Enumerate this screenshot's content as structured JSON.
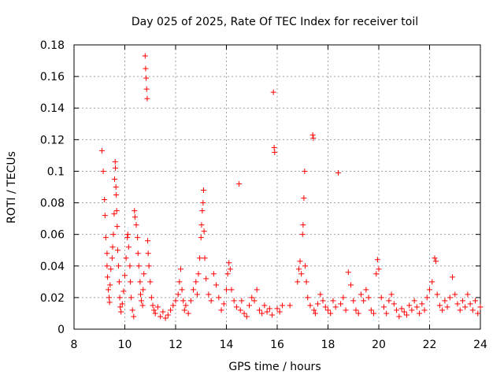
{
  "chart_data": {
    "type": "scatter",
    "title": "Day 025 of 2025, Rate Of TEC Index for receiver toil",
    "xlabel": "GPS time / hours",
    "ylabel": "ROTI / TECUs",
    "xlim": [
      8,
      24
    ],
    "ylim": [
      0,
      0.18
    ],
    "xticks": [
      "8",
      "10",
      "12",
      "14",
      "16",
      "18",
      "20",
      "22",
      "24"
    ],
    "yticks": [
      "0",
      "0.02",
      "0.04",
      "0.06",
      "0.08",
      "0.1",
      "0.12",
      "0.14",
      "0.16",
      "0.18"
    ],
    "grid": true,
    "marker": "+",
    "color": "#ff0000",
    "series": [
      {
        "name": "ROTI",
        "points": [
          [
            9.1,
            0.113
          ],
          [
            9.15,
            0.1
          ],
          [
            9.2,
            0.082
          ],
          [
            9.22,
            0.072
          ],
          [
            9.25,
            0.058
          ],
          [
            9.3,
            0.048
          ],
          [
            9.3,
            0.04
          ],
          [
            9.32,
            0.033
          ],
          [
            9.35,
            0.025
          ],
          [
            9.38,
            0.02
          ],
          [
            9.4,
            0.017
          ],
          [
            9.42,
            0.028
          ],
          [
            9.45,
            0.038
          ],
          [
            9.5,
            0.045
          ],
          [
            9.52,
            0.052
          ],
          [
            9.55,
            0.06
          ],
          [
            9.58,
            0.073
          ],
          [
            9.6,
            0.095
          ],
          [
            9.62,
            0.106
          ],
          [
            9.63,
            0.102
          ],
          [
            9.65,
            0.09
          ],
          [
            9.66,
            0.085
          ],
          [
            9.68,
            0.075
          ],
          [
            9.7,
            0.065
          ],
          [
            9.72,
            0.05
          ],
          [
            9.75,
            0.04
          ],
          [
            9.78,
            0.03
          ],
          [
            9.8,
            0.02
          ],
          [
            9.82,
            0.014
          ],
          [
            9.85,
            0.011
          ],
          [
            9.9,
            0.016
          ],
          [
            9.95,
            0.024
          ],
          [
            10.0,
            0.034
          ],
          [
            10.05,
            0.045
          ],
          [
            10.1,
            0.058
          ],
          [
            10.12,
            0.06
          ],
          [
            10.15,
            0.052
          ],
          [
            10.2,
            0.04
          ],
          [
            10.22,
            0.03
          ],
          [
            10.25,
            0.02
          ],
          [
            10.3,
            0.012
          ],
          [
            10.35,
            0.008
          ],
          [
            10.38,
            0.075
          ],
          [
            10.4,
            0.071
          ],
          [
            10.45,
            0.066
          ],
          [
            10.5,
            0.058
          ],
          [
            10.52,
            0.048
          ],
          [
            10.55,
            0.04
          ],
          [
            10.6,
            0.03
          ],
          [
            10.62,
            0.022
          ],
          [
            10.65,
            0.018
          ],
          [
            10.7,
            0.015
          ],
          [
            10.72,
            0.025
          ],
          [
            10.75,
            0.035
          ],
          [
            10.8,
            0.173
          ],
          [
            10.82,
            0.165
          ],
          [
            10.84,
            0.159
          ],
          [
            10.86,
            0.152
          ],
          [
            10.88,
            0.146
          ],
          [
            10.9,
            0.056
          ],
          [
            10.92,
            0.048
          ],
          [
            10.95,
            0.04
          ],
          [
            11.0,
            0.03
          ],
          [
            11.05,
            0.02
          ],
          [
            11.1,
            0.015
          ],
          [
            11.15,
            0.012
          ],
          [
            11.2,
            0.01
          ],
          [
            11.3,
            0.014
          ],
          [
            11.4,
            0.008
          ],
          [
            11.5,
            0.011
          ],
          [
            11.6,
            0.007
          ],
          [
            11.7,
            0.009
          ],
          [
            11.8,
            0.012
          ],
          [
            11.9,
            0.015
          ],
          [
            12.0,
            0.018
          ],
          [
            12.1,
            0.022
          ],
          [
            12.15,
            0.03
          ],
          [
            12.2,
            0.038
          ],
          [
            12.25,
            0.025
          ],
          [
            12.3,
            0.018
          ],
          [
            12.35,
            0.012
          ],
          [
            12.4,
            0.015
          ],
          [
            12.5,
            0.01
          ],
          [
            12.6,
            0.018
          ],
          [
            12.7,
            0.025
          ],
          [
            12.8,
            0.03
          ],
          [
            12.85,
            0.022
          ],
          [
            12.9,
            0.035
          ],
          [
            12.95,
            0.045
          ],
          [
            13.0,
            0.058
          ],
          [
            13.02,
            0.066
          ],
          [
            13.05,
            0.075
          ],
          [
            13.08,
            0.08
          ],
          [
            13.1,
            0.088
          ],
          [
            13.12,
            0.062
          ],
          [
            13.15,
            0.045
          ],
          [
            13.2,
            0.032
          ],
          [
            13.3,
            0.022
          ],
          [
            13.4,
            0.018
          ],
          [
            13.5,
            0.035
          ],
          [
            13.6,
            0.028
          ],
          [
            13.7,
            0.02
          ],
          [
            13.8,
            0.012
          ],
          [
            13.9,
            0.016
          ],
          [
            14.0,
            0.025
          ],
          [
            14.05,
            0.035
          ],
          [
            14.1,
            0.042
          ],
          [
            14.15,
            0.038
          ],
          [
            14.2,
            0.025
          ],
          [
            14.3,
            0.018
          ],
          [
            14.4,
            0.014
          ],
          [
            14.5,
            0.092
          ],
          [
            14.55,
            0.012
          ],
          [
            14.6,
            0.018
          ],
          [
            14.7,
            0.01
          ],
          [
            14.8,
            0.008
          ],
          [
            14.9,
            0.015
          ],
          [
            15.0,
            0.02
          ],
          [
            15.1,
            0.018
          ],
          [
            15.2,
            0.025
          ],
          [
            15.3,
            0.012
          ],
          [
            15.4,
            0.01
          ],
          [
            15.5,
            0.015
          ],
          [
            15.6,
            0.011
          ],
          [
            15.7,
            0.013
          ],
          [
            15.8,
            0.009
          ],
          [
            15.85,
            0.15
          ],
          [
            15.88,
            0.115
          ],
          [
            15.9,
            0.112
          ],
          [
            16.0,
            0.013
          ],
          [
            16.1,
            0.011
          ],
          [
            16.2,
            0.015
          ],
          [
            16.5,
            0.015
          ],
          [
            16.8,
            0.03
          ],
          [
            16.85,
            0.038
          ],
          [
            16.9,
            0.043
          ],
          [
            16.95,
            0.035
          ],
          [
            17.0,
            0.06
          ],
          [
            17.02,
            0.066
          ],
          [
            17.05,
            0.083
          ],
          [
            17.08,
            0.1
          ],
          [
            17.1,
            0.04
          ],
          [
            17.15,
            0.03
          ],
          [
            17.2,
            0.02
          ],
          [
            17.3,
            0.015
          ],
          [
            17.4,
            0.123
          ],
          [
            17.42,
            0.121
          ],
          [
            17.45,
            0.012
          ],
          [
            17.5,
            0.01
          ],
          [
            17.6,
            0.016
          ],
          [
            17.7,
            0.022
          ],
          [
            17.8,
            0.018
          ],
          [
            17.9,
            0.014
          ],
          [
            18.0,
            0.012
          ],
          [
            18.1,
            0.01
          ],
          [
            18.2,
            0.018
          ],
          [
            18.3,
            0.014
          ],
          [
            18.4,
            0.099
          ],
          [
            18.5,
            0.016
          ],
          [
            18.6,
            0.02
          ],
          [
            18.7,
            0.012
          ],
          [
            18.8,
            0.036
          ],
          [
            18.9,
            0.028
          ],
          [
            19.0,
            0.018
          ],
          [
            19.1,
            0.012
          ],
          [
            19.2,
            0.01
          ],
          [
            19.3,
            0.022
          ],
          [
            19.4,
            0.018
          ],
          [
            19.5,
            0.025
          ],
          [
            19.6,
            0.02
          ],
          [
            19.7,
            0.012
          ],
          [
            19.8,
            0.01
          ],
          [
            19.9,
            0.035
          ],
          [
            19.95,
            0.044
          ],
          [
            20.0,
            0.038
          ],
          [
            20.1,
            0.02
          ],
          [
            20.2,
            0.014
          ],
          [
            20.3,
            0.01
          ],
          [
            20.4,
            0.018
          ],
          [
            20.5,
            0.022
          ],
          [
            20.6,
            0.016
          ],
          [
            20.7,
            0.012
          ],
          [
            20.8,
            0.008
          ],
          [
            20.9,
            0.013
          ],
          [
            21.0,
            0.011
          ],
          [
            21.1,
            0.009
          ],
          [
            21.2,
            0.015
          ],
          [
            21.3,
            0.012
          ],
          [
            21.4,
            0.018
          ],
          [
            21.5,
            0.014
          ],
          [
            21.6,
            0.01
          ],
          [
            21.7,
            0.016
          ],
          [
            21.8,
            0.012
          ],
          [
            21.9,
            0.02
          ],
          [
            22.0,
            0.025
          ],
          [
            22.1,
            0.03
          ],
          [
            22.2,
            0.045
          ],
          [
            22.25,
            0.043
          ],
          [
            22.3,
            0.022
          ],
          [
            22.4,
            0.015
          ],
          [
            22.5,
            0.012
          ],
          [
            22.6,
            0.018
          ],
          [
            22.7,
            0.014
          ],
          [
            22.8,
            0.02
          ],
          [
            22.9,
            0.033
          ],
          [
            23.0,
            0.022
          ],
          [
            23.1,
            0.016
          ],
          [
            23.2,
            0.012
          ],
          [
            23.3,
            0.018
          ],
          [
            23.4,
            0.014
          ],
          [
            23.5,
            0.022
          ],
          [
            23.6,
            0.016
          ],
          [
            23.7,
            0.012
          ],
          [
            23.8,
            0.018
          ],
          [
            23.9,
            0.01
          ],
          [
            24.0,
            0.014
          ]
        ]
      }
    ]
  }
}
